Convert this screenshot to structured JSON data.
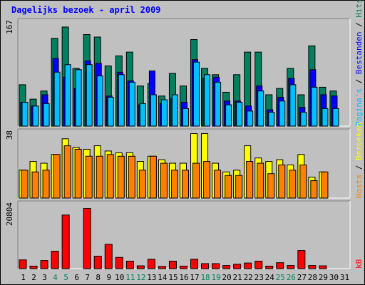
{
  "chart_data": {
    "type": "bar",
    "title": "Dagelijks bezoek - april 2009",
    "categories": [
      "1",
      "2",
      "3",
      "4",
      "5",
      "6",
      "7",
      "8",
      "9",
      "10",
      "11",
      "12",
      "13",
      "14",
      "15",
      "16",
      "17",
      "18",
      "19",
      "20",
      "21",
      "22",
      "23",
      "24",
      "25",
      "26",
      "27",
      "28",
      "29",
      "30",
      "31"
    ],
    "weekend_days": [
      4,
      5,
      11,
      12,
      18,
      19,
      25,
      26
    ],
    "panels": [
      {
        "id": "top",
        "ymax_label": "167",
        "ylim": [
          0,
          167
        ],
        "series": [
          {
            "name": "Hits",
            "color": "#00805f",
            "values": [
              66,
              43,
              56,
              140,
              158,
              92,
              146,
              142,
              96,
              112,
              118,
              64,
              68,
              48,
              84,
              64,
              138,
              92,
              82,
              54,
              82,
              118,
              118,
              50,
              60,
              92,
              50,
              128,
              62,
              56,
              0
            ]
          },
          {
            "name": "Bestanden",
            "color": "#0000ff",
            "values": [
              38,
              32,
              50,
              108,
              78,
              60,
              104,
              100,
              48,
              86,
              72,
              34,
              88,
              36,
              44,
              38,
              106,
              76,
              78,
              40,
              40,
              32,
              64,
              26,
              46,
              76,
              30,
              90,
              50,
              48,
              0
            ]
          },
          {
            "name": "Pagina's",
            "color": "#00bfff",
            "values": [
              38,
              32,
              36,
              86,
              98,
              90,
              98,
              80,
              46,
              82,
              70,
              36,
              50,
              42,
              50,
              28,
              102,
              82,
              70,
              34,
              38,
              24,
              56,
              22,
              40,
              66,
              22,
              62,
              28,
              28,
              0
            ]
          }
        ]
      },
      {
        "id": "middle",
        "ymax_label": "38",
        "ylim": [
          0,
          38
        ],
        "series": [
          {
            "name": "Bezoeken",
            "color": "#ffff00",
            "values": [
              16,
              21,
              20,
              25,
              34,
              29,
              28,
              30,
              27,
              26,
              26,
              21,
              24,
              22,
              20,
              20,
              37,
              37,
              20,
              15,
              16,
              30,
              23,
              21,
              22,
              19,
              25,
              12,
              15,
              0,
              0
            ]
          },
          {
            "name": "Hosts",
            "color": "#ff8000",
            "values": [
              16,
              15,
              16,
              25,
              30,
              28,
              24,
              24,
              25,
              24,
              24,
              16,
              24,
              20,
              16,
              16,
              20,
              21,
              16,
              13,
              13,
              21,
              20,
              14,
              19,
              16,
              19,
              10,
              15,
              0,
              0
            ]
          }
        ]
      },
      {
        "id": "bottom",
        "ymax_label": "20804",
        "ylim": [
          0,
          20804
        ],
        "series": [
          {
            "name": "kB",
            "color": "#ff0000",
            "values": [
              2800,
              800,
              2600,
              5600,
              17200,
              0,
              19300,
              4000,
              7800,
              3600,
              2400,
              900,
              3000,
              700,
              2400,
              800,
              3000,
              1600,
              1600,
              1000,
              1400,
              1800,
              2400,
              800,
              1900,
              1000,
              5800,
              1000,
              900,
              0,
              0
            ]
          }
        ]
      }
    ],
    "right_labels": {
      "top": [
        "Hits",
        " / ",
        "Bestanden",
        " / ",
        "Pagina's"
      ],
      "middle": [
        "Bezoeken",
        " / ",
        "Hosts"
      ],
      "bottom": [
        "kB"
      ]
    },
    "colors": {
      "background": "#c0c0c0",
      "title": "#0000ff",
      "weekday_label": "#000000",
      "weekend_label": "#00805f",
      "hits_label": "#00805f",
      "bestanden_label": "#0000ff",
      "paginas_label": "#00bfff",
      "bezoeken_label": "#ffff00",
      "hosts_label": "#ff8000",
      "kb_label": "#ff0000"
    }
  }
}
